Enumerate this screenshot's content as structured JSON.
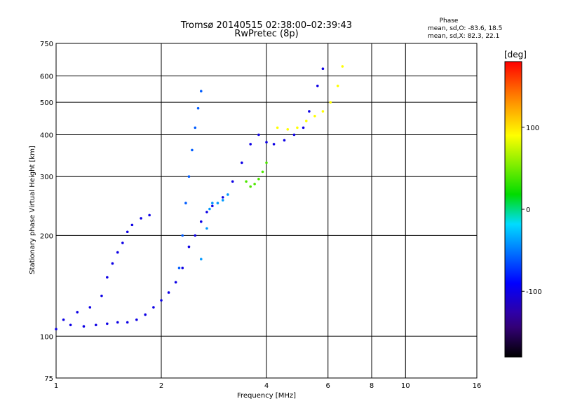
{
  "chart_data": {
    "type": "scatter",
    "title": "Tromsø 20140515 02:38:00–02:39:43",
    "subtitle": "RwPretec (8p)",
    "xlabel": "Frequency [MHz]",
    "ylabel": "Stationary phase Virtual Height [km]",
    "xscale": "log",
    "yscale": "log",
    "xlim": [
      1,
      16
    ],
    "ylim": [
      75,
      750
    ],
    "x_ticks": [
      1,
      2,
      4,
      6,
      8,
      10,
      16
    ],
    "x_tick_labels": [
      "1",
      "2",
      "4",
      "6",
      "8",
      "10",
      "16"
    ],
    "y_ticks": [
      75,
      100,
      200,
      300,
      400,
      500,
      600,
      750
    ],
    "y_tick_labels": [
      "75",
      "100",
      "200",
      "300",
      "400",
      "500",
      "600",
      "750"
    ],
    "grid": true,
    "phase_stats": {
      "heading": "Phase",
      "line_o": "mean, sd,O: -83.6, 18.5",
      "line_x": "mean, sd,X:  82.3, 22.1"
    },
    "colorbar": {
      "label": "[deg]",
      "range": [
        -180,
        180
      ],
      "ticks": [
        100,
        0,
        -100
      ],
      "tick_labels": [
        "100",
        "0",
        "-100"
      ]
    },
    "traces": [
      {
        "phase": -100,
        "points": [
          [
            1.0,
            105
          ],
          [
            1.1,
            108
          ],
          [
            1.2,
            107
          ],
          [
            1.3,
            108
          ],
          [
            1.4,
            109
          ],
          [
            1.5,
            110
          ],
          [
            1.6,
            110
          ],
          [
            1.7,
            112
          ],
          [
            1.8,
            116
          ],
          [
            1.9,
            122
          ],
          [
            2.0,
            128
          ],
          [
            2.1,
            135
          ],
          [
            2.2,
            145
          ],
          [
            2.3,
            160
          ],
          [
            2.4,
            185
          ],
          [
            2.5,
            200
          ],
          [
            2.6,
            220
          ],
          [
            2.7,
            235
          ],
          [
            2.8,
            245
          ],
          [
            3.0,
            260
          ],
          [
            3.2,
            290
          ],
          [
            3.4,
            330
          ],
          [
            3.6,
            375
          ],
          [
            3.8,
            400
          ],
          [
            4.0,
            380
          ],
          [
            4.2,
            375
          ],
          [
            4.5,
            385
          ],
          [
            4.8,
            400
          ],
          [
            5.1,
            420
          ],
          [
            5.3,
            470
          ],
          [
            5.6,
            560
          ],
          [
            5.8,
            630
          ]
        ]
      },
      {
        "phase": -100,
        "points": [
          [
            1.05,
            112
          ],
          [
            1.15,
            118
          ],
          [
            1.25,
            122
          ],
          [
            1.35,
            132
          ],
          [
            1.4,
            150
          ],
          [
            1.45,
            165
          ],
          [
            1.5,
            178
          ],
          [
            1.55,
            190
          ],
          [
            1.6,
            205
          ],
          [
            1.65,
            215
          ],
          [
            1.75,
            225
          ],
          [
            1.85,
            230
          ]
        ]
      },
      {
        "phase": -60,
        "points": [
          [
            2.25,
            160
          ],
          [
            2.3,
            200
          ],
          [
            2.35,
            250
          ],
          [
            2.4,
            300
          ],
          [
            2.45,
            360
          ],
          [
            2.5,
            420
          ],
          [
            2.55,
            480
          ],
          [
            2.6,
            540
          ]
        ]
      },
      {
        "phase": -40,
        "points": [
          [
            2.6,
            170
          ],
          [
            2.7,
            210
          ],
          [
            2.75,
            240
          ],
          [
            2.8,
            250
          ],
          [
            2.9,
            250
          ],
          [
            3.0,
            255
          ],
          [
            3.1,
            265
          ]
        ]
      },
      {
        "phase": 40,
        "points": [
          [
            3.5,
            290
          ],
          [
            3.6,
            280
          ],
          [
            3.7,
            285
          ],
          [
            3.8,
            295
          ],
          [
            3.9,
            310
          ],
          [
            4.0,
            330
          ]
        ]
      },
      {
        "phase": 90,
        "points": [
          [
            4.3,
            420
          ],
          [
            4.6,
            415
          ],
          [
            4.9,
            420
          ],
          [
            5.2,
            440
          ],
          [
            5.5,
            455
          ],
          [
            5.8,
            470
          ],
          [
            6.1,
            500
          ],
          [
            6.4,
            560
          ],
          [
            6.6,
            640
          ]
        ]
      }
    ]
  }
}
